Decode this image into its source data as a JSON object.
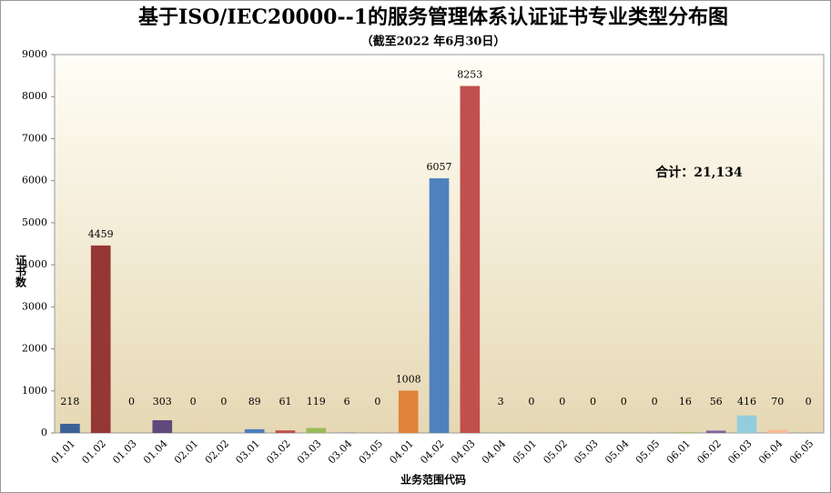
{
  "chart_data": {
    "type": "bar",
    "title": "基于ISO/IEC20000--1的服务管理体系认证证书专业类型分布图",
    "subtitle": "（截至2022 年6月30日）",
    "y_label": "证书数",
    "x_label": "业务范围代码",
    "annotation": "合计：21,134",
    "categories": [
      "01.01",
      "01.02",
      "01.03",
      "01.04",
      "02.01",
      "02.02",
      "03.01",
      "03.02",
      "03.03",
      "03.04",
      "03.05",
      "04.01",
      "04.02",
      "04.03",
      "04.04",
      "05.01",
      "05.02",
      "05.03",
      "05.04",
      "05.05",
      "06.01",
      "06.02",
      "06.03",
      "06.04",
      "06.05"
    ],
    "values": [
      218,
      4459,
      0,
      303,
      0,
      0,
      89,
      61,
      119,
      6,
      0,
      1008,
      6057,
      8253,
      3,
      0,
      0,
      0,
      0,
      0,
      16,
      56,
      416,
      70,
      0
    ],
    "colors": [
      "#3b6199",
      "#953735",
      "#4f81bd",
      "#60497b",
      "#4f81bd",
      "#4f81bd",
      "#4a7ebb",
      "#c0504d",
      "#9bbb59",
      "#8064a2",
      "#4bacc6",
      "#e0843a",
      "#4f81bd",
      "#c0504d",
      "#9bbb59",
      "#8064a2",
      "#4bacc6",
      "#f79646",
      "#4f81bd",
      "#c0504d",
      "#9bbb59",
      "#8064a2",
      "#93cddd",
      "#fab990",
      "#4f81bd"
    ],
    "ylim": [
      0,
      9000
    ],
    "yticks": [
      0,
      1000,
      2000,
      3000,
      4000,
      5000,
      6000,
      7000,
      8000,
      9000
    ],
    "grid": false
  }
}
